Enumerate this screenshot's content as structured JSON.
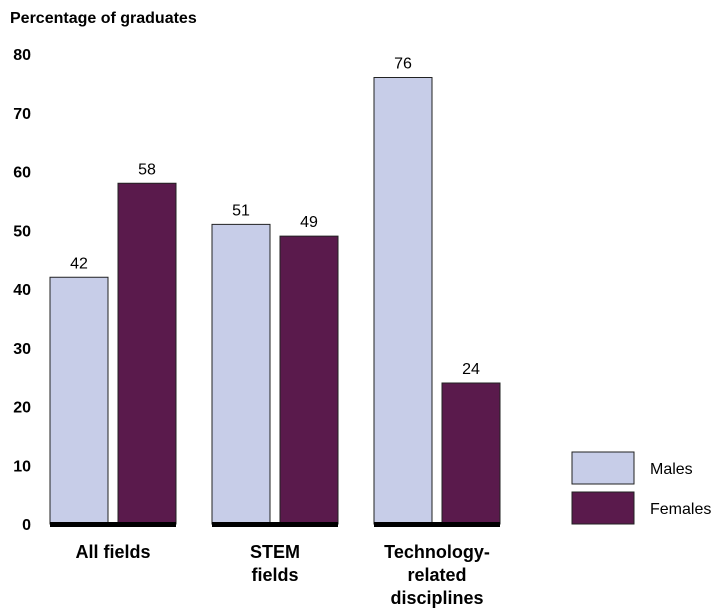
{
  "chart_data": {
    "type": "bar",
    "ylabel": "Percentage of graduates",
    "ylim": [
      0,
      80
    ],
    "yticks": [
      0,
      10,
      20,
      30,
      40,
      50,
      60,
      70,
      80
    ],
    "categories": [
      [
        "All fields"
      ],
      [
        "STEM",
        "fields"
      ],
      [
        "Technology-",
        "related",
        "disciplines"
      ]
    ],
    "series": [
      {
        "name": "Males",
        "color": "#c7cde8",
        "values": [
          42,
          51,
          76
        ]
      },
      {
        "name": "Females",
        "color": "#5a1a4c",
        "values": [
          58,
          49,
          24
        ]
      }
    ],
    "grid": false,
    "legend_position": "right"
  }
}
